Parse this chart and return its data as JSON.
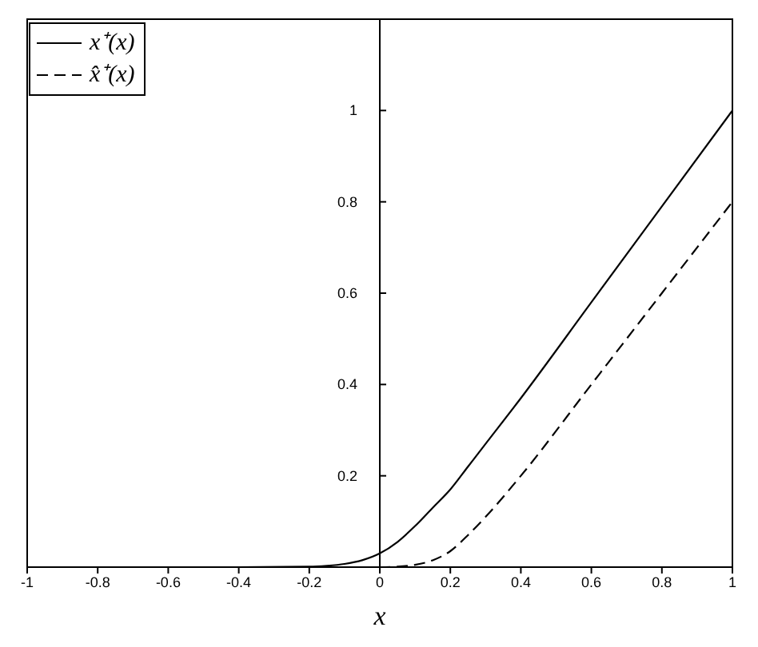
{
  "chart_data": {
    "type": "line",
    "xlabel": "x",
    "x": [
      -1,
      -0.8,
      -0.6,
      -0.4,
      -0.2,
      -0.15,
      -0.1,
      -0.05,
      0,
      0.05,
      0.1,
      0.15,
      0.2,
      0.25,
      0.3,
      0.4,
      0.6,
      0.8,
      1
    ],
    "series": [
      {
        "name": "x⁺(x)",
        "color": "#000000",
        "line_style": "solid",
        "values": [
          0,
          0,
          0,
          0,
          0.001,
          0.003,
          0.007,
          0.015,
          0.03,
          0.055,
          0.09,
          0.13,
          0.17,
          0.22,
          0.27,
          0.37,
          0.58,
          0.79,
          1.0
        ]
      },
      {
        "name": "x̂⁺(x)",
        "color": "#000000",
        "line_style": "dashed",
        "values": [
          0,
          0,
          0,
          0,
          0,
          0,
          0,
          0,
          0,
          0.001,
          0.005,
          0.015,
          0.035,
          0.07,
          0.11,
          0.2,
          0.4,
          0.6,
          0.8
        ]
      }
    ],
    "xlim": [
      -1,
      1
    ],
    "xticks": [
      -1,
      -0.8,
      -0.6,
      -0.4,
      -0.2,
      0,
      0.2,
      0.4,
      0.6,
      0.8,
      1
    ],
    "ylim": [
      0,
      1.2
    ],
    "yticks": [
      0.2,
      0.4,
      0.6,
      0.8,
      1
    ],
    "legend": "top left",
    "marker": "none"
  }
}
